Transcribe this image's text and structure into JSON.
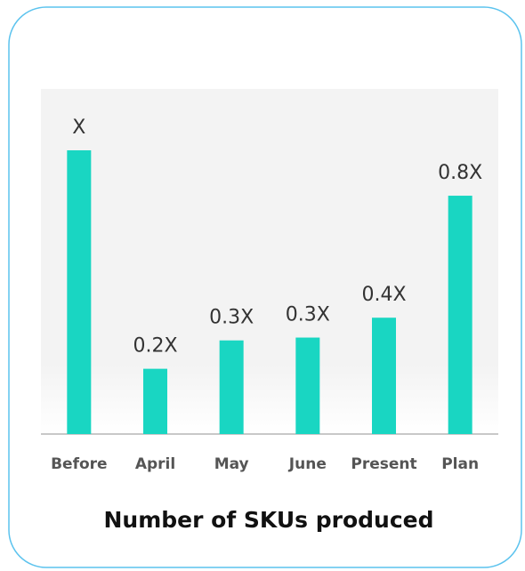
{
  "chart_data": {
    "type": "bar",
    "title": "Number of SKUs produced",
    "categories": [
      "Before",
      "April",
      "May",
      "June",
      "Present",
      "Plan"
    ],
    "values": [
      1,
      0.23,
      0.33,
      0.34,
      0.41,
      0.84
    ],
    "value_labels": [
      "X",
      "0.2X",
      "0.3X",
      "0.3X",
      "0.4X",
      "0.8X"
    ],
    "color": "#19d6c2"
  }
}
